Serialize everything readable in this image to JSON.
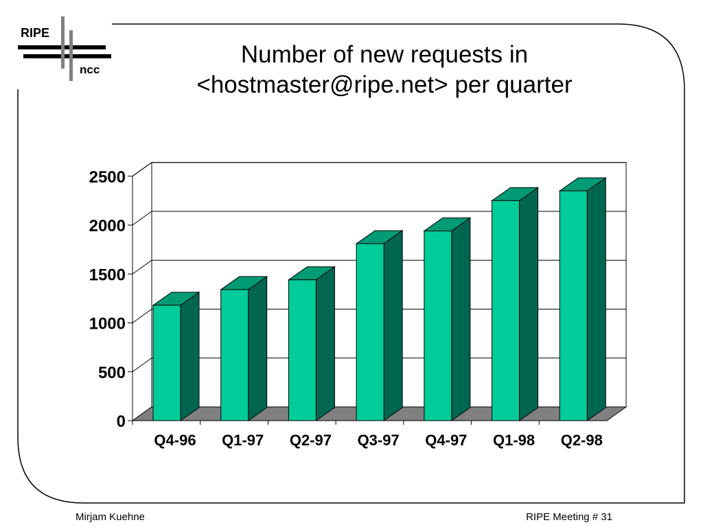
{
  "logo": {
    "top_text": "RIPE",
    "bottom_text": "ncc"
  },
  "title": {
    "line1": "Number of new requests in",
    "line2": "<hostmaster@ripe.net> per quarter"
  },
  "footer": {
    "left": "Mirjam Kuehne",
    "right": "RIPE Meeting # 31"
  },
  "colors": {
    "bar_front": "#00cc99",
    "bar_side": "#006650",
    "bar_top": "#009a74",
    "floor": "#808080"
  },
  "chart_data": {
    "type": "bar",
    "title": "Number of new requests in <hostmaster@ripe.net> per quarter",
    "xlabel": "",
    "ylabel": "",
    "categories": [
      "Q4-96",
      "Q1-97",
      "Q2-97",
      "Q3-97",
      "Q4-97",
      "Q1-98",
      "Q2-98"
    ],
    "values": [
      1180,
      1340,
      1440,
      1810,
      1940,
      2250,
      2350
    ],
    "ylim": [
      0,
      2500
    ],
    "yticks": [
      0,
      500,
      1000,
      1500,
      2000,
      2500
    ],
    "grid": true,
    "legend": "none",
    "style": "3d-bars"
  }
}
